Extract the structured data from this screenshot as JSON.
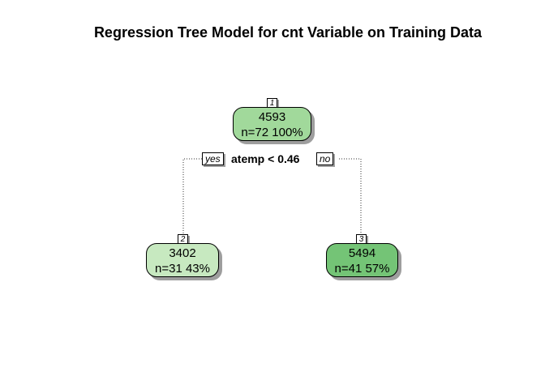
{
  "title": "Regression Tree Model for cnt Variable on Training Data",
  "root": {
    "id": "1",
    "value": "4593",
    "stats": "n=72  100%",
    "color": "#a1d99b"
  },
  "split": "atemp < 0.46",
  "branch_yes": "yes",
  "branch_no": "no",
  "left": {
    "id": "2",
    "value": "3402",
    "stats": "n=31  43%",
    "color": "#c7e9c0"
  },
  "right": {
    "id": "3",
    "value": "5494",
    "stats": "n=41  57%",
    "color": "#74c476"
  }
}
